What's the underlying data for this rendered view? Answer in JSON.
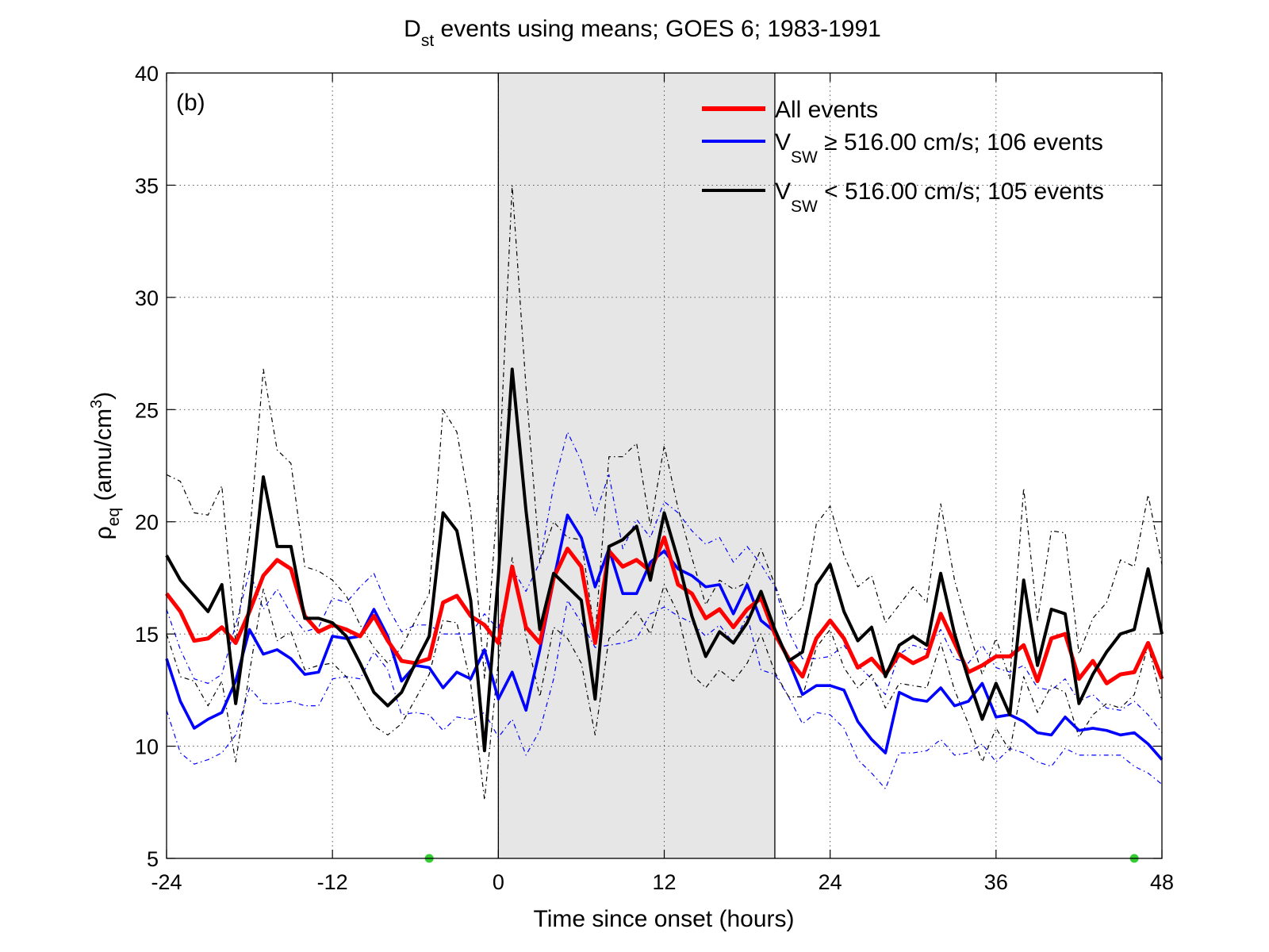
{
  "chart_data": {
    "type": "line",
    "title": {
      "main": "D",
      "subscript": "st",
      "rest": " events using means; GOES 6; 1983-1991"
    },
    "panel_label": "(b)",
    "xlabel": "Time since onset (hours)",
    "ylabel": {
      "main": "ρ",
      "subscript": "eq",
      "unit": " (amu/cm",
      "unit_sup": "3",
      "unit_close": ")"
    },
    "xlim": [
      -24,
      48
    ],
    "ylim": [
      5,
      40
    ],
    "x_ticks": [
      -24,
      -12,
      0,
      12,
      24,
      36,
      48
    ],
    "y_ticks": [
      5,
      10,
      15,
      20,
      25,
      30,
      35,
      40
    ],
    "grid": true,
    "shaded_region": {
      "x_start": 0,
      "x_end": 20,
      "color": "#e6e6e6"
    },
    "markers": [
      {
        "x": -5,
        "y": 5,
        "color": "#33cc33"
      },
      {
        "x": 46,
        "y": 5,
        "color": "#33cc33"
      }
    ],
    "legend": {
      "placement": "top-right",
      "entries": [
        {
          "color": "#ff0000",
          "main": "All events",
          "sub": "",
          "rest": ""
        },
        {
          "color": "#0000ff",
          "main": "V",
          "sub": "SW",
          "rest": " ≥ 516.00 cm/s; 106 events"
        },
        {
          "color": "#000000",
          "main": "V",
          "sub": "SW",
          "rest": " < 516.00 cm/s; 105 events"
        }
      ]
    },
    "x_start": -24,
    "x_step": 1,
    "series": [
      {
        "key": "all",
        "color": "#ff0000",
        "width": 5,
        "dash": "",
        "values": [
          16.8,
          16.0,
          14.7,
          14.8,
          15.3,
          14.6,
          16.0,
          17.6,
          18.3,
          17.9,
          15.8,
          15.1,
          15.4,
          15.2,
          14.9,
          15.8,
          14.7,
          13.8,
          13.7,
          13.9,
          16.4,
          16.7,
          15.8,
          15.4,
          14.6,
          18.0,
          15.3,
          14.6,
          17.5,
          18.8,
          18.0,
          14.6,
          18.7,
          18.0,
          18.3,
          17.8,
          19.3,
          17.2,
          16.8,
          15.7,
          16.1,
          15.3,
          16.1,
          16.6,
          15.0,
          13.9,
          13.1,
          14.8,
          15.6,
          14.8,
          13.5,
          13.9,
          13.2,
          14.1,
          13.7,
          14.0,
          15.9,
          14.6,
          13.3,
          13.6,
          14.0,
          14.0,
          14.5,
          12.9,
          14.8,
          15.0,
          13.0,
          13.8,
          12.8,
          13.2,
          13.3,
          14.6,
          13.0
        ]
      },
      {
        "key": "fast",
        "color": "#0000ff",
        "width": 3.6,
        "dash": "",
        "values": [
          13.9,
          12.0,
          10.8,
          11.2,
          11.5,
          12.9,
          15.2,
          14.1,
          14.3,
          13.9,
          13.2,
          13.3,
          14.9,
          14.8,
          14.9,
          16.1,
          14.9,
          12.9,
          13.6,
          13.5,
          12.6,
          13.3,
          13.0,
          14.3,
          12.1,
          13.3,
          11.6,
          14.3,
          17.4,
          20.3,
          19.3,
          17.1,
          18.8,
          16.8,
          16.8,
          18.2,
          18.7,
          17.9,
          17.6,
          17.1,
          17.2,
          15.9,
          17.2,
          15.6,
          15.1,
          13.8,
          12.3,
          12.7,
          12.7,
          12.5,
          11.1,
          10.3,
          9.7,
          12.4,
          12.1,
          12.0,
          12.6,
          11.8,
          12.0,
          12.8,
          11.3,
          11.4,
          11.1,
          10.6,
          10.5,
          11.3,
          10.7,
          10.8,
          10.7,
          10.5,
          10.6,
          10.1,
          9.4
        ]
      },
      {
        "key": "slow",
        "color": "#000000",
        "width": 4,
        "dash": "",
        "values": [
          18.5,
          17.4,
          16.7,
          16.0,
          17.2,
          11.9,
          16.3,
          22.0,
          18.9,
          18.9,
          15.7,
          15.7,
          15.5,
          14.9,
          13.7,
          12.4,
          11.8,
          12.4,
          13.7,
          14.9,
          20.4,
          19.6,
          16.5,
          9.8,
          17.6,
          26.8,
          20.5,
          15.2,
          17.7,
          17.1,
          16.5,
          12.1,
          18.9,
          19.2,
          19.8,
          17.4,
          20.4,
          18.3,
          15.8,
          14.0,
          15.1,
          14.6,
          15.5,
          16.9,
          15.2,
          13.8,
          14.2,
          17.2,
          18.1,
          16.0,
          14.7,
          15.3,
          13.1,
          14.5,
          14.9,
          14.5,
          17.7,
          15.0,
          13.0,
          11.2,
          12.8,
          11.4,
          17.4,
          13.6,
          16.1,
          15.9,
          11.9,
          13.2,
          14.2,
          15.0,
          15.2,
          17.9,
          15.0
        ]
      },
      {
        "key": "fast_upper",
        "color": "#0000ff",
        "width": 1.2,
        "dash": "6,4,1.5,4",
        "values": [
          16.1,
          14.3,
          13.0,
          12.8,
          13.2,
          15.4,
          17.8,
          16.1,
          17.0,
          15.9,
          15.1,
          15.3,
          16.6,
          16.4,
          17.1,
          17.7,
          16.2,
          15.1,
          15.4,
          15.4,
          15.0,
          15.0,
          15.0,
          15.9,
          15.2,
          17.9,
          16.9,
          18.2,
          21.6,
          24.0,
          22.7,
          20.3,
          22.1,
          18.8,
          20.1,
          19.3,
          20.9,
          20.4,
          19.6,
          19.0,
          19.3,
          18.2,
          18.9,
          18.1,
          17.1,
          15.1,
          13.9,
          13.9,
          14.0,
          14.5,
          13.6,
          13.0,
          12.3,
          14.1,
          14.5,
          14.3,
          15.2,
          13.9,
          13.7,
          14.5,
          13.5,
          13.3,
          13.6,
          12.6,
          12.5,
          13.0,
          12.0,
          12.3,
          11.7,
          11.6,
          12.0,
          11.4,
          10.6
        ]
      },
      {
        "key": "fast_lower",
        "color": "#0000ff",
        "width": 1.2,
        "dash": "6,4,1.5,4",
        "values": [
          11.6,
          9.7,
          9.2,
          9.4,
          9.7,
          10.5,
          12.6,
          11.9,
          11.9,
          12.0,
          11.8,
          11.8,
          13.0,
          13.1,
          13.0,
          14.2,
          13.4,
          11.4,
          11.5,
          11.4,
          10.7,
          11.3,
          11.2,
          11.5,
          10.4,
          11.2,
          9.6,
          10.7,
          13.0,
          16.5,
          15.5,
          14.4,
          14.5,
          14.6,
          14.8,
          15.9,
          16.2,
          15.8,
          15.5,
          14.9,
          15.4,
          14.6,
          15.8,
          13.4,
          13.2,
          12.2,
          11.0,
          11.5,
          11.4,
          10.8,
          9.4,
          8.8,
          8.1,
          9.7,
          9.7,
          9.8,
          10.3,
          9.6,
          9.7,
          10.1,
          9.3,
          9.9,
          9.7,
          9.3,
          9.1,
          9.9,
          9.6,
          9.6,
          9.6,
          9.6,
          9.1,
          8.8,
          8.3
        ]
      },
      {
        "key": "slow_upper",
        "color": "#000000",
        "width": 1.2,
        "dash": "6,4,1.5,4",
        "values": [
          22.1,
          21.8,
          20.4,
          20.3,
          21.6,
          14.6,
          19.3,
          26.8,
          23.2,
          22.6,
          18.0,
          17.8,
          17.4,
          16.7,
          15.4,
          14.4,
          13.7,
          14.4,
          15.6,
          16.8,
          25.0,
          24.0,
          20.5,
          13.0,
          21.5,
          35.0,
          26.0,
          18.2,
          20.0,
          19.3,
          19.2,
          14.9,
          22.9,
          22.9,
          23.5,
          19.8,
          23.4,
          20.6,
          18.4,
          16.3,
          17.4,
          17.0,
          17.3,
          18.8,
          17.2,
          15.6,
          16.2,
          19.9,
          20.7,
          18.5,
          17.1,
          17.6,
          15.5,
          16.3,
          17.1,
          16.4,
          20.8,
          17.4,
          15.2,
          13.2,
          14.8,
          13.0,
          21.5,
          15.6,
          19.6,
          19.5,
          14.1,
          15.7,
          16.4,
          18.3,
          18.0,
          21.2,
          18.1
        ]
      },
      {
        "key": "slow_lower",
        "color": "#000000",
        "width": 1.2,
        "dash": "6,4,1.5,4",
        "values": [
          15.0,
          13.1,
          12.9,
          11.8,
          12.9,
          9.3,
          13.3,
          17.0,
          14.7,
          15.1,
          13.4,
          13.6,
          13.7,
          13.1,
          12.0,
          10.9,
          10.5,
          11.0,
          12.1,
          13.2,
          15.6,
          15.5,
          12.8,
          7.6,
          13.8,
          18.4,
          14.9,
          12.2,
          15.3,
          14.8,
          13.7,
          10.5,
          14.8,
          15.3,
          16.0,
          15.0,
          17.2,
          15.9,
          13.2,
          12.6,
          13.4,
          12.9,
          13.7,
          15.0,
          13.3,
          12.2,
          12.2,
          14.4,
          15.2,
          13.5,
          12.6,
          13.2,
          11.7,
          12.8,
          12.7,
          12.6,
          14.6,
          12.5,
          11.0,
          9.3,
          10.8,
          9.8,
          13.1,
          11.5,
          12.7,
          12.4,
          10.4,
          11.4,
          11.9,
          11.7,
          12.3,
          14.5,
          12.0
        ]
      }
    ]
  }
}
